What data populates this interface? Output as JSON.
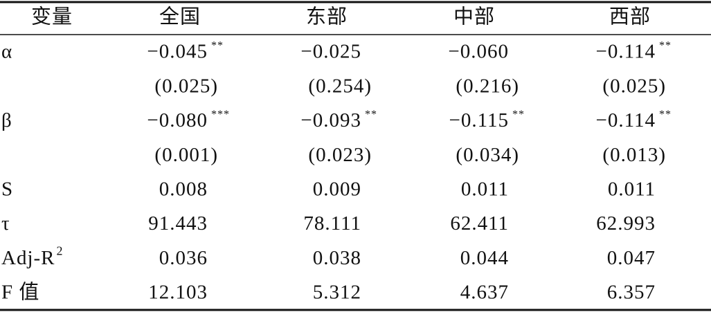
{
  "table": {
    "header": [
      "变量",
      "全国",
      "东部",
      "中部",
      "西部"
    ],
    "rows": [
      {
        "label": "α",
        "cells": [
          {
            "value": "−0.045",
            "stars": "**"
          },
          {
            "value": "−0.025"
          },
          {
            "value": "−0.060"
          },
          {
            "value": "−0.114",
            "stars": "**"
          }
        ]
      },
      {
        "cells": [
          {
            "value": "(0.025)"
          },
          {
            "value": "(0.254)"
          },
          {
            "value": "(0.216)"
          },
          {
            "value": "(0.025)"
          }
        ]
      },
      {
        "label": "β",
        "cells": [
          {
            "value": "−0.080",
            "stars": "***"
          },
          {
            "value": "−0.093",
            "stars": "**"
          },
          {
            "value": "−0.115",
            "stars": "**"
          },
          {
            "value": "−0.114",
            "stars": "**"
          }
        ]
      },
      {
        "cells": [
          {
            "value": "(0.001)"
          },
          {
            "value": "(0.023)"
          },
          {
            "value": "(0.034)"
          },
          {
            "value": "(0.013)"
          }
        ]
      },
      {
        "label": "S",
        "cells": [
          {
            "value": "0.008"
          },
          {
            "value": "0.009"
          },
          {
            "value": "0.011"
          },
          {
            "value": "0.011"
          }
        ]
      },
      {
        "label": "τ",
        "cells": [
          {
            "value": "91.443"
          },
          {
            "value": "78.111"
          },
          {
            "value": "62.411"
          },
          {
            "value": "62.993"
          }
        ]
      },
      {
        "label": "Adj-R",
        "sup": "2",
        "cells": [
          {
            "value": "0.036"
          },
          {
            "value": "0.038"
          },
          {
            "value": "0.044"
          },
          {
            "value": "0.047"
          }
        ]
      },
      {
        "label": "F 值",
        "cells": [
          {
            "value": "12.103"
          },
          {
            "value": "5.312"
          },
          {
            "value": "4.637"
          },
          {
            "value": "6.357"
          }
        ]
      }
    ]
  }
}
